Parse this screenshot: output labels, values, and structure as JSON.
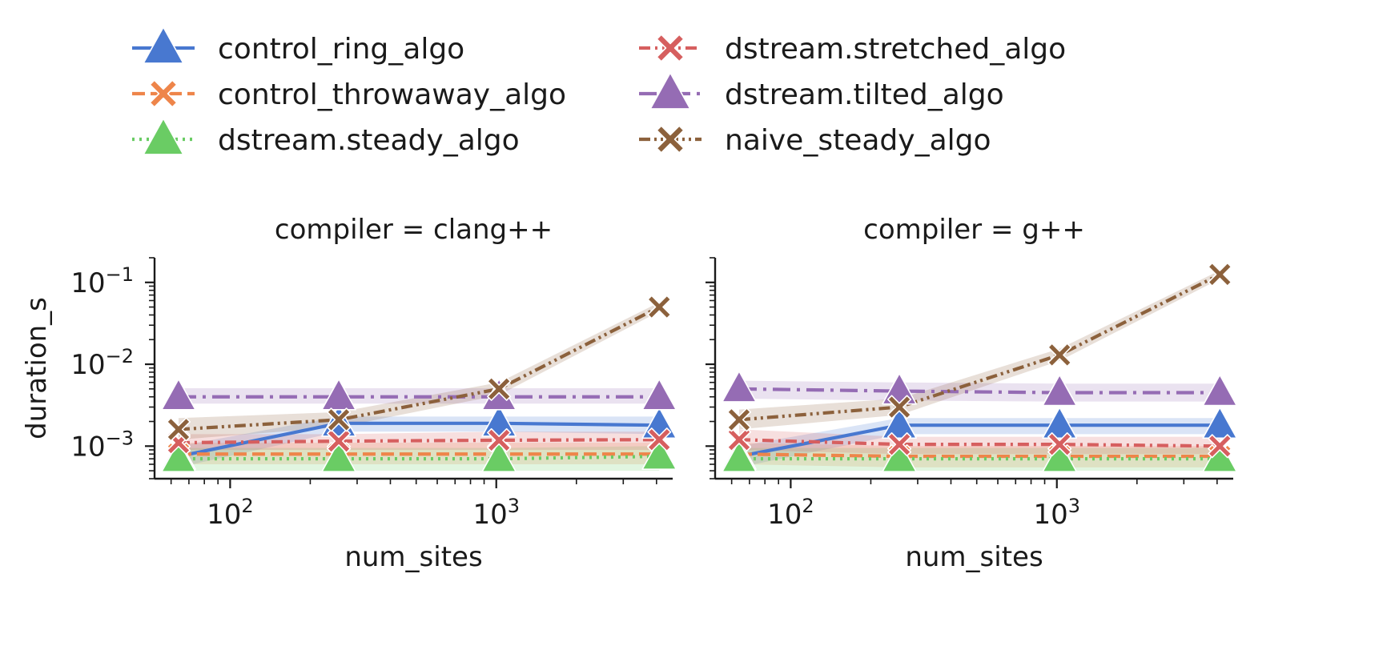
{
  "legend": {
    "placement": "top",
    "entries": [
      {
        "label": "control_ring_algo",
        "color": "#4878d0",
        "marker": "triangle",
        "dash": "solid"
      },
      {
        "label": "control_throwaway_algo",
        "color": "#ee854a",
        "marker": "x",
        "dash": "dashed"
      },
      {
        "label": "dstream.steady_algo",
        "color": "#6acc64",
        "marker": "triangle",
        "dash": "dotted"
      },
      {
        "label": "dstream.stretched_algo",
        "color": "#d65f5f",
        "marker": "x",
        "dash": "dashed-dotted"
      },
      {
        "label": "dstream.tilted_algo",
        "color": "#956cb4",
        "marker": "triangle",
        "dash": "dash-dot"
      },
      {
        "label": "naive_steady_algo",
        "color": "#8c613c",
        "marker": "x",
        "dash": "dash-dot-dot"
      }
    ]
  },
  "chart_data": [
    {
      "type": "line",
      "title": "compiler = clang++",
      "xlabel": "num_sites",
      "ylabel": "duration_s",
      "xscale": "log",
      "yscale": "log",
      "xlim": [
        52,
        4600
      ],
      "ylim": [
        0.0004,
        0.2
      ],
      "xticks": [
        {
          "value": 100,
          "label": "10",
          "exp": "2"
        },
        {
          "value": 1000,
          "label": "10",
          "exp": "3"
        }
      ],
      "yticks": [
        {
          "value": 0.001,
          "label": "10",
          "exp": "−3"
        },
        {
          "value": 0.01,
          "label": "10",
          "exp": "−2"
        },
        {
          "value": 0.1,
          "label": "10",
          "exp": "−1"
        }
      ],
      "grid": false,
      "x": [
        64,
        256,
        1024,
        4096
      ],
      "series": [
        {
          "name": "control_ring_algo",
          "values": [
            0.00075,
            0.0019,
            0.0019,
            0.0018
          ],
          "band": [
            [
              0.00055,
              0.001
            ],
            [
              0.0015,
              0.0023
            ],
            [
              0.0015,
              0.0023
            ],
            [
              0.0014,
              0.0023
            ]
          ]
        },
        {
          "name": "control_throwaway_algo",
          "values": [
            0.0008,
            0.0008,
            0.0008,
            0.0008
          ],
          "band": [
            [
              0.0006,
              0.0011
            ],
            [
              0.0006,
              0.0011
            ],
            [
              0.0006,
              0.0011
            ],
            [
              0.0006,
              0.0011
            ]
          ]
        },
        {
          "name": "dstream.steady_algo",
          "values": [
            0.0007,
            0.0007,
            0.0007,
            0.00075
          ],
          "band": [
            [
              0.0005,
              0.00095
            ],
            [
              0.0005,
              0.00095
            ],
            [
              0.0005,
              0.00095
            ],
            [
              0.0005,
              0.001
            ]
          ]
        },
        {
          "name": "dstream.stretched_algo",
          "values": [
            0.0011,
            0.00115,
            0.00118,
            0.0012
          ],
          "band": [
            [
              0.0009,
              0.0014
            ],
            [
              0.0009,
              0.0014
            ],
            [
              0.0009,
              0.0015
            ],
            [
              0.0009,
              0.0015
            ]
          ]
        },
        {
          "name": "dstream.tilted_algo",
          "values": [
            0.004,
            0.004,
            0.004,
            0.004
          ],
          "band": [
            [
              0.0033,
              0.0051
            ],
            [
              0.0033,
              0.0051
            ],
            [
              0.0033,
              0.0051
            ],
            [
              0.0033,
              0.0051
            ]
          ]
        },
        {
          "name": "naive_steady_algo",
          "values": [
            0.0016,
            0.0021,
            0.005,
            0.05
          ],
          "band": [
            [
              0.0012,
              0.0022
            ],
            [
              0.0017,
              0.0026
            ],
            [
              0.0042,
              0.006
            ],
            [
              0.044,
              0.057
            ]
          ]
        }
      ]
    },
    {
      "type": "line",
      "title": "compiler = g++",
      "xlabel": "num_sites",
      "ylabel": "",
      "xscale": "log",
      "yscale": "log",
      "xlim": [
        52,
        4600
      ],
      "ylim": [
        0.0004,
        0.2
      ],
      "xticks": [
        {
          "value": 100,
          "label": "10",
          "exp": "2"
        },
        {
          "value": 1000,
          "label": "10",
          "exp": "3"
        }
      ],
      "yticks": [
        {
          "value": 0.001
        },
        {
          "value": 0.01
        },
        {
          "value": 0.1
        }
      ],
      "grid": false,
      "x": [
        64,
        256,
        1024,
        4096
      ],
      "series": [
        {
          "name": "control_ring_algo",
          "values": [
            0.00075,
            0.0018,
            0.0018,
            0.0018
          ],
          "band": [
            [
              0.00055,
              0.001
            ],
            [
              0.0014,
              0.0022
            ],
            [
              0.0014,
              0.0022
            ],
            [
              0.0014,
              0.0022
            ]
          ]
        },
        {
          "name": "control_throwaway_algo",
          "values": [
            0.0008,
            0.00075,
            0.00075,
            0.00075
          ],
          "band": [
            [
              0.0006,
              0.0011
            ],
            [
              0.00055,
              0.001
            ],
            [
              0.00055,
              0.001
            ],
            [
              0.00055,
              0.001
            ]
          ]
        },
        {
          "name": "dstream.steady_algo",
          "values": [
            0.0007,
            0.0007,
            0.0007,
            0.0007
          ],
          "band": [
            [
              0.0005,
              0.00095
            ],
            [
              0.0005,
              0.00095
            ],
            [
              0.0005,
              0.00095
            ],
            [
              0.0005,
              0.00095
            ]
          ]
        },
        {
          "name": "dstream.stretched_algo",
          "values": [
            0.0012,
            0.00105,
            0.00105,
            0.001
          ],
          "band": [
            [
              0.0009,
              0.0016
            ],
            [
              0.0008,
              0.0013
            ],
            [
              0.0008,
              0.0013
            ],
            [
              0.0008,
              0.0013
            ]
          ]
        },
        {
          "name": "dstream.tilted_algo",
          "values": [
            0.005,
            0.0047,
            0.0045,
            0.0045
          ],
          "band": [
            [
              0.0038,
              0.0063
            ],
            [
              0.0036,
              0.006
            ],
            [
              0.0035,
              0.0058
            ],
            [
              0.0035,
              0.0058
            ]
          ]
        },
        {
          "name": "naive_steady_algo",
          "values": [
            0.0021,
            0.003,
            0.013,
            0.125
          ],
          "band": [
            [
              0.0016,
              0.0028
            ],
            [
              0.0024,
              0.0038
            ],
            [
              0.011,
              0.0155
            ],
            [
              0.11,
              0.14
            ]
          ]
        }
      ]
    }
  ]
}
